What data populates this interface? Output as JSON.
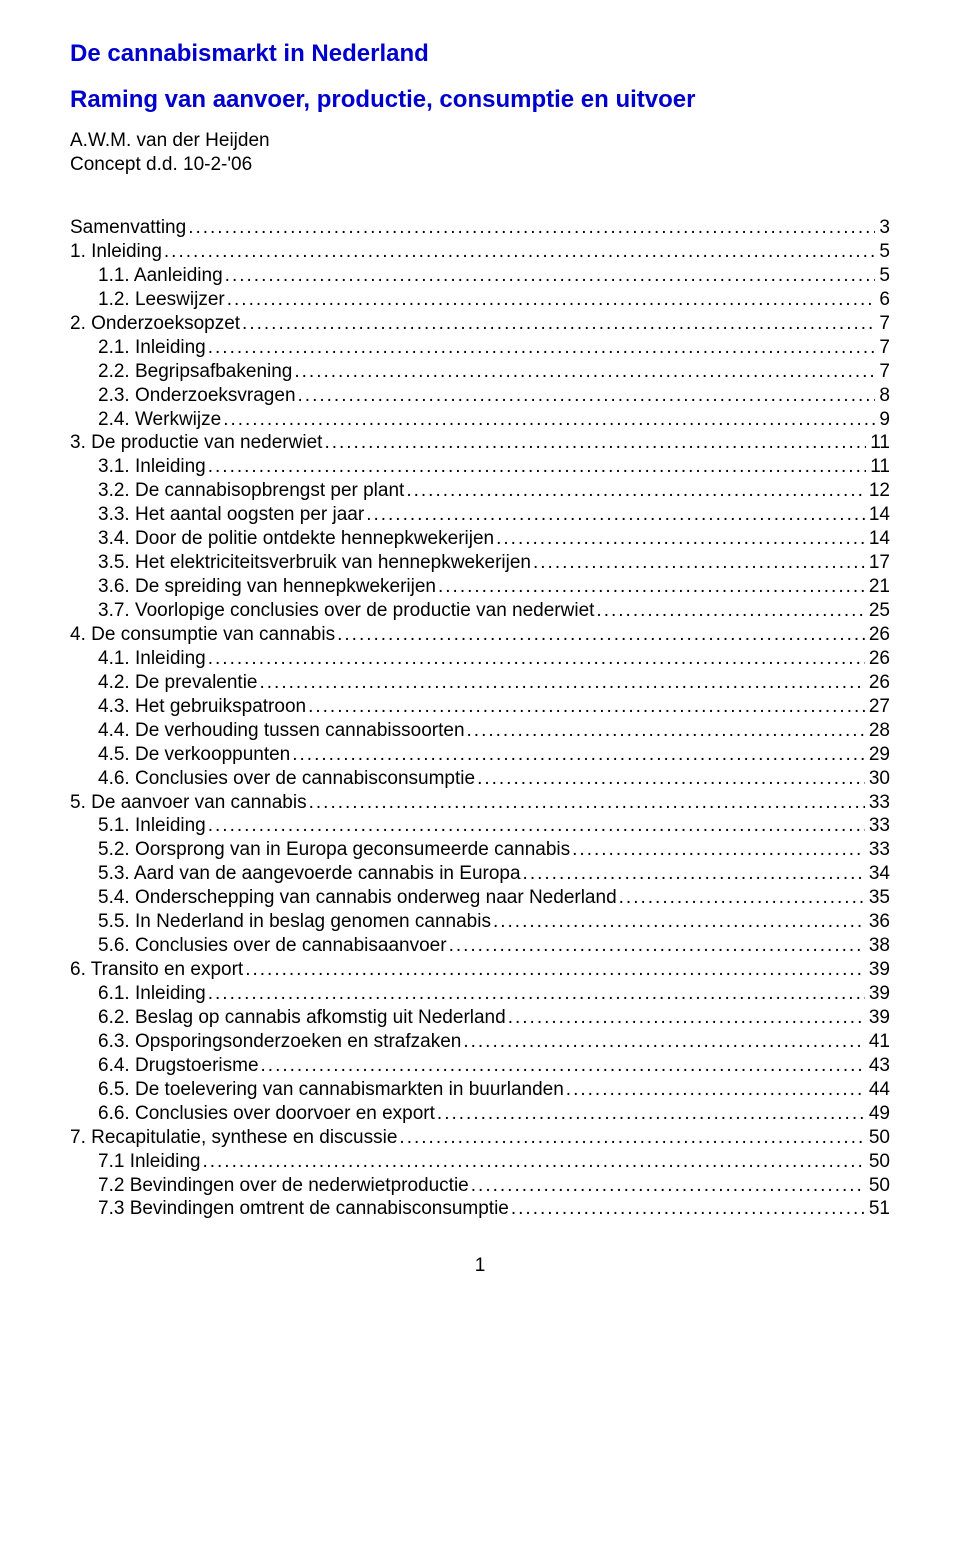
{
  "title": "De cannabismarkt in Nederland",
  "subtitle": "Raming van aanvoer, productie, consumptie en uitvoer",
  "author": "A.W.M. van der Heijden",
  "concept": "Concept d.d. 10-2-'06",
  "page_number": "1",
  "toc": [
    {
      "label": "Samenvatting",
      "page": "3",
      "indent": 0
    },
    {
      "label": "1.    Inleiding",
      "page": "5",
      "indent": 0
    },
    {
      "label": "1.1. Aanleiding",
      "page": "5",
      "indent": 1
    },
    {
      "label": "1.2. Leeswijzer",
      "page": "6",
      "indent": 1
    },
    {
      "label": "2.    Onderzoeksopzet",
      "page": "7",
      "indent": 0
    },
    {
      "label": "2.1. Inleiding",
      "page": "7",
      "indent": 1
    },
    {
      "label": "2.2. Begripsafbakening",
      "page": "7",
      "indent": 1
    },
    {
      "label": "2.3. Onderzoeksvragen",
      "page": "8",
      "indent": 1
    },
    {
      "label": "2.4. Werkwijze",
      "page": "9",
      "indent": 1
    },
    {
      "label": "3.    De productie van nederwiet",
      "page": "11",
      "indent": 0
    },
    {
      "label": "3.1. Inleiding",
      "page": "11",
      "indent": 1
    },
    {
      "label": "3.2. De cannabisopbrengst per plant",
      "page": "12",
      "indent": 1
    },
    {
      "label": "3.3. Het aantal oogsten per jaar",
      "page": "14",
      "indent": 1
    },
    {
      "label": "3.4. Door de politie ontdekte hennepkwekerijen",
      "page": "14",
      "indent": 1
    },
    {
      "label": "3.5. Het elektriciteitsverbruik van hennepkwekerijen",
      "page": "17",
      "indent": 1
    },
    {
      "label": "3.6. De spreiding van hennepkwekerijen",
      "page": "21",
      "indent": 1
    },
    {
      "label": "3.7. Voorlopige conclusies over de productie van nederwiet",
      "page": "25",
      "indent": 1
    },
    {
      "label": "4.    De consumptie van cannabis",
      "page": "26",
      "indent": 0
    },
    {
      "label": "4.1. Inleiding",
      "page": "26",
      "indent": 1
    },
    {
      "label": "4.2. De prevalentie",
      "page": "26",
      "indent": 1
    },
    {
      "label": "4.3. Het gebruikspatroon",
      "page": "27",
      "indent": 1
    },
    {
      "label": "4.4. De verhouding tussen cannabissoorten",
      "page": "28",
      "indent": 1
    },
    {
      "label": "4.5. De verkooppunten",
      "page": "29",
      "indent": 1
    },
    {
      "label": "4.6. Conclusies over de cannabisconsumptie",
      "page": "30",
      "indent": 1
    },
    {
      "label": "5.    De aanvoer van cannabis",
      "page": "33",
      "indent": 0
    },
    {
      "label": "5.1. Inleiding",
      "page": "33",
      "indent": 1
    },
    {
      "label": "5.2. Oorsprong van in Europa geconsumeerde cannabis",
      "page": "33",
      "indent": 1
    },
    {
      "label": "5.3. Aard van de aangevoerde cannabis in Europa",
      "page": "34",
      "indent": 1
    },
    {
      "label": "5.4. Onderschepping van cannabis onderweg naar Nederland",
      "page": "35",
      "indent": 1
    },
    {
      "label": "5.5. In Nederland in beslag genomen cannabis",
      "page": "36",
      "indent": 1
    },
    {
      "label": "5.6. Conclusies over de cannabisaanvoer",
      "page": "38",
      "indent": 1
    },
    {
      "label": "6.    Transito en export",
      "page": "39",
      "indent": 0
    },
    {
      "label": "6.1. Inleiding",
      "page": "39",
      "indent": 1
    },
    {
      "label": "6.2. Beslag op cannabis afkomstig uit Nederland",
      "page": "39",
      "indent": 1
    },
    {
      "label": "6.3. Opsporingsonderzoeken en strafzaken",
      "page": "41",
      "indent": 1
    },
    {
      "label": "6.4. Drugstoerisme",
      "page": "43",
      "indent": 1
    },
    {
      "label": "6.5. De toelevering van cannabismarkten in buurlanden",
      "page": "44",
      "indent": 1
    },
    {
      "label": "6.6. Conclusies over doorvoer en export",
      "page": "49",
      "indent": 1
    },
    {
      "label": "7.    Recapitulatie, synthese en discussie",
      "page": "50",
      "indent": 0
    },
    {
      "label": "7.1 Inleiding",
      "page": "50",
      "indent": 1
    },
    {
      "label": "7.2 Bevindingen over de nederwietproductie",
      "page": "50",
      "indent": 1
    },
    {
      "label": "7.3 Bevindingen omtrent de cannabisconsumptie",
      "page": "51",
      "indent": 1
    }
  ]
}
